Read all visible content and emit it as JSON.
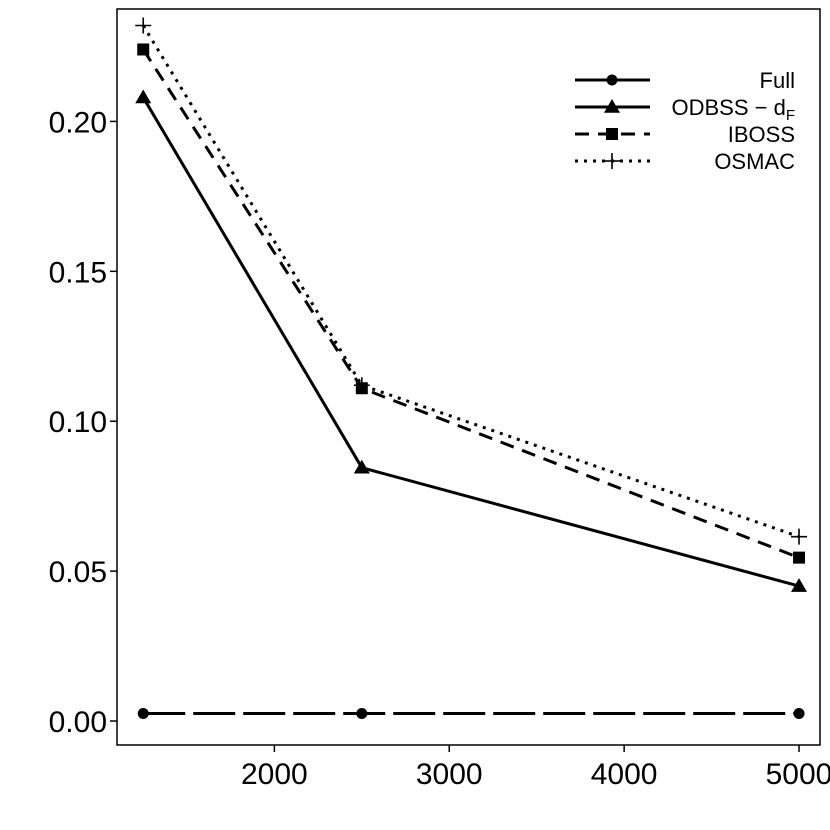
{
  "chart_data": {
    "type": "line",
    "title": "",
    "xlabel": "",
    "ylabel": "",
    "x": [
      1250,
      2500,
      5000
    ],
    "xlim": [
      1100,
      5120
    ],
    "ylim": [
      -0.008,
      0.2375
    ],
    "xticks": [
      2000,
      3000,
      4000,
      5000
    ],
    "xtick_labels": [
      "2000",
      "3000",
      "4000",
      "5000"
    ],
    "yticks": [
      0.0,
      0.05,
      0.1,
      0.15,
      0.2
    ],
    "ytick_labels": [
      "0.00",
      "0.05",
      "0.10",
      "0.15",
      "0.20"
    ],
    "grid": false,
    "legend_position": "top-right",
    "series": [
      {
        "name": "Full",
        "values": [
          0.0025,
          0.0025,
          0.0025
        ],
        "line": "longdash",
        "marker": "circle"
      },
      {
        "name": "ODBSS",
        "subscript_suffix": "F",
        "values": [
          0.208,
          0.0845,
          0.045
        ],
        "line": "solid",
        "marker": "triangle"
      },
      {
        "name": "IBOSS",
        "values": [
          0.224,
          0.111,
          0.0545
        ],
        "line": "dashed",
        "marker": "square"
      },
      {
        "name": "OSMAC",
        "values": [
          0.232,
          0.112,
          0.0615
        ],
        "line": "dotted",
        "marker": "plus"
      }
    ]
  }
}
